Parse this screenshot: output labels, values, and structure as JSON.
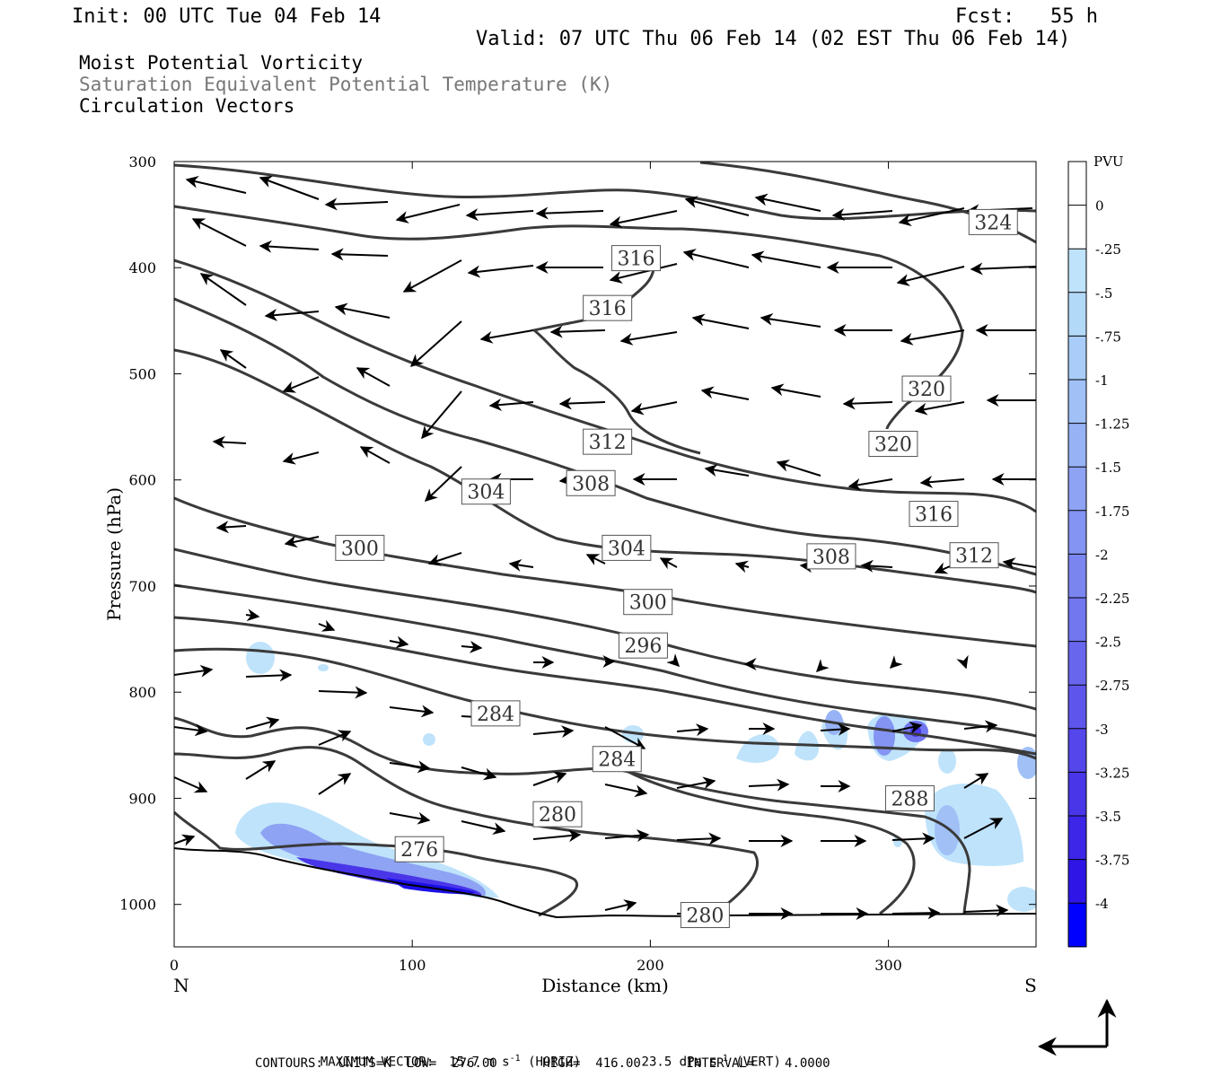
{
  "header": {
    "init": "Init: 00 UTC Tue 04 Feb 14",
    "fcst": "Fcst:   55 h",
    "valid": "Valid: 07 UTC Thu 06 Feb 14 (02 EST Thu 06 Feb 14)"
  },
  "legend": {
    "line1": "Moist Potential Vorticity",
    "line2": "Saturation Equivalent Potential Temperature (K)",
    "line3": "Circulation Vectors"
  },
  "footer": {
    "max_vector_label": "MAXIMUM VECTOR:",
    "max_vector_horiz": "15.7 m s",
    "horiz_tag": "(HORIZ)",
    "max_vector_vert": "23.5 dPa s",
    "vert_tag": "(VERT)",
    "exp": "-1",
    "contours": "CONTOURS:  UNITS=K  LOW=  276.00      HIGH=  416.00      INTERVAL=    4.0000"
  },
  "colors": {
    "contour": "#3a3a3a",
    "vector": "#000000",
    "pv_light": "#bfe3fb",
    "pv_dark": "#0000ff"
  },
  "chart_data": {
    "type": "contour",
    "xlabel": "Distance (km)",
    "ylabel": "Pressure (hPa)",
    "xlim": [
      0,
      362
    ],
    "ylim": [
      1040,
      300
    ],
    "x_ticks": [
      0,
      100,
      200,
      300
    ],
    "y_ticks": [
      300,
      400,
      500,
      600,
      700,
      800,
      900,
      1000
    ],
    "x_end_labels": [
      "N",
      "S"
    ],
    "colorbar": {
      "title": "PVU",
      "labels": [
        "0",
        "-.25",
        "-.5",
        "-.75",
        "-1",
        "-1.25",
        "-1.5",
        "-1.75",
        "-2",
        "-2.25",
        "-2.5",
        "-2.75",
        "-3",
        "-3.25",
        "-3.5",
        "-3.75",
        "-4"
      ],
      "colors": [
        "#ffffff",
        "#ffffff",
        "#bfe3fb",
        "#b3d9f9",
        "#a9cdf8",
        "#a0c0f6",
        "#97b2f5",
        "#8ea3f3",
        "#8494f2",
        "#7b85f0",
        "#7276ef",
        "#6866ed",
        "#5e56ec",
        "#5446ea",
        "#4a36e9",
        "#3d26e8",
        "#2f16e6",
        "#0000ff"
      ]
    },
    "contour_labels": [
      {
        "text": "324",
        "x": 344,
        "p": 357
      },
      {
        "text": "316",
        "x": 194,
        "p": 391
      },
      {
        "text": "316",
        "x": 182,
        "p": 438
      },
      {
        "text": "320",
        "x": 316,
        "p": 514
      },
      {
        "text": "320",
        "x": 302,
        "p": 566
      },
      {
        "text": "312",
        "x": 182,
        "p": 564
      },
      {
        "text": "304",
        "x": 131,
        "p": 611
      },
      {
        "text": "308",
        "x": 175,
        "p": 603
      },
      {
        "text": "316",
        "x": 319,
        "p": 632
      },
      {
        "text": "300",
        "x": 78,
        "p": 664
      },
      {
        "text": "304",
        "x": 190,
        "p": 664
      },
      {
        "text": "308",
        "x": 276,
        "p": 672
      },
      {
        "text": "312",
        "x": 336,
        "p": 671
      },
      {
        "text": "300",
        "x": 199,
        "p": 715
      },
      {
        "text": "296",
        "x": 197,
        "p": 756
      },
      {
        "text": "284",
        "x": 135,
        "p": 820
      },
      {
        "text": "284",
        "x": 186,
        "p": 863
      },
      {
        "text": "288",
        "x": 309,
        "p": 900
      },
      {
        "text": "280",
        "x": 161,
        "p": 915
      },
      {
        "text": "276",
        "x": 103,
        "p": 948
      },
      {
        "text": "280",
        "x": 223,
        "p": 1010
      }
    ]
  }
}
